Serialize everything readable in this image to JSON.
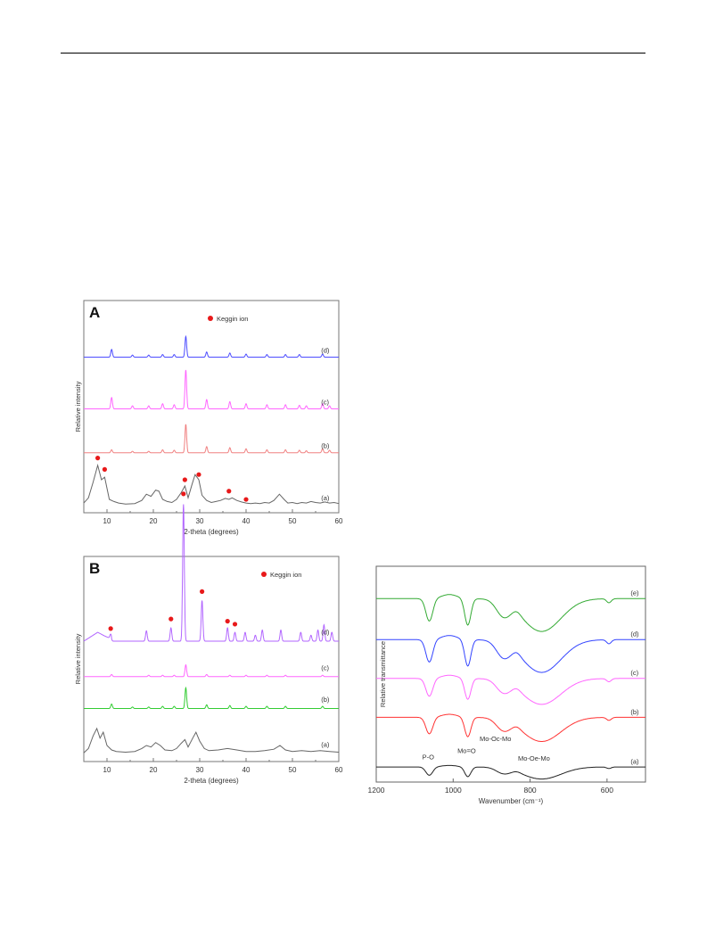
{
  "chart_data": [
    {
      "type": "line",
      "panel_label": "A",
      "legend": "Keggin ion",
      "legend_color": "#e8191a",
      "xlabel": "2-theta (degrees)",
      "ylabel": "Relative intensity",
      "xlim": [
        5,
        60
      ],
      "xticks": [
        10,
        20,
        30,
        40,
        50,
        60
      ],
      "xtick_labels": [
        "10",
        "20",
        "30",
        "40",
        "50",
        "60"
      ],
      "series": [
        {
          "name": "(a)",
          "color": "#666666",
          "offset": 0,
          "points": [
            [
              5,
              0.05
            ],
            [
              6,
              0.15
            ],
            [
              7,
              0.45
            ],
            [
              8,
              0.78
            ],
            [
              8.8,
              0.5
            ],
            [
              9.5,
              0.55
            ],
            [
              10.5,
              0.12
            ],
            [
              11.5,
              0.08
            ],
            [
              12.5,
              0.05
            ],
            [
              14,
              0.03
            ],
            [
              16,
              0.04
            ],
            [
              17.5,
              0.1
            ],
            [
              18.5,
              0.22
            ],
            [
              19.5,
              0.18
            ],
            [
              20.5,
              0.3
            ],
            [
              21.2,
              0.28
            ],
            [
              22,
              0.12
            ],
            [
              23,
              0.08
            ],
            [
              24,
              0.06
            ],
            [
              25,
              0.12
            ],
            [
              26,
              0.25
            ],
            [
              26.8,
              0.38
            ],
            [
              27.5,
              0.15
            ],
            [
              28.3,
              0.4
            ],
            [
              29,
              0.6
            ],
            [
              29.8,
              0.5
            ],
            [
              30.5,
              0.2
            ],
            [
              31.5,
              0.1
            ],
            [
              32.5,
              0.06
            ],
            [
              33.5,
              0.08
            ],
            [
              34.5,
              0.1
            ],
            [
              35.5,
              0.14
            ],
            [
              36.3,
              0.12
            ],
            [
              37,
              0.15
            ],
            [
              38,
              0.1
            ],
            [
              39,
              0.07
            ],
            [
              40,
              0.05
            ],
            [
              41,
              0.04
            ],
            [
              42,
              0.05
            ],
            [
              43,
              0.04
            ],
            [
              44,
              0.06
            ],
            [
              45,
              0.05
            ],
            [
              46,
              0.1
            ],
            [
              47.2,
              0.22
            ],
            [
              48.2,
              0.12
            ],
            [
              49,
              0.05
            ],
            [
              50,
              0.06
            ],
            [
              51,
              0.04
            ],
            [
              52,
              0.06
            ],
            [
              53,
              0.05
            ],
            [
              54,
              0.08
            ],
            [
              55,
              0.06
            ],
            [
              56,
              0.05
            ],
            [
              57,
              0.07
            ],
            [
              58,
              0.05
            ],
            [
              59,
              0.06
            ],
            [
              60,
              0.04
            ]
          ],
          "markers": [
            [
              8,
              0.92
            ],
            [
              9.5,
              0.7
            ],
            [
              26.8,
              0.5
            ],
            [
              29.8,
              0.6
            ],
            [
              36.3,
              0.28
            ],
            [
              40,
              0.12
            ]
          ]
        },
        {
          "name": "(b)",
          "color": "#f08080",
          "offset": 1.0,
          "base": 0.02,
          "peaks": [
            [
              11,
              0.06
            ],
            [
              15.5,
              0.03
            ],
            [
              19,
              0.03
            ],
            [
              22,
              0.06
            ],
            [
              24.5,
              0.05
            ],
            [
              27,
              0.55
            ],
            [
              31.5,
              0.12
            ],
            [
              36.5,
              0.1
            ],
            [
              40,
              0.08
            ],
            [
              44.5,
              0.06
            ],
            [
              48.5,
              0.06
            ],
            [
              51.5,
              0.05
            ],
            [
              53,
              0.04
            ],
            [
              56.5,
              0.08
            ],
            [
              58,
              0.05
            ]
          ]
        },
        {
          "name": "(c)",
          "color": "#ff66ff",
          "offset": 1.85,
          "base": 0.02,
          "peaks": [
            [
              11,
              0.22
            ],
            [
              15.5,
              0.06
            ],
            [
              19,
              0.06
            ],
            [
              22,
              0.1
            ],
            [
              24.5,
              0.08
            ],
            [
              27,
              0.75
            ],
            [
              31.5,
              0.18
            ],
            [
              36.5,
              0.14
            ],
            [
              40,
              0.1
            ],
            [
              44.5,
              0.08
            ],
            [
              48.5,
              0.08
            ],
            [
              51.5,
              0.07
            ],
            [
              53,
              0.06
            ],
            [
              56.5,
              0.1
            ],
            [
              58,
              0.06
            ]
          ]
        },
        {
          "name": "(d)",
          "color": "#4d4dff",
          "offset": 2.85,
          "base": 0.02,
          "peaks": [
            [
              11,
              0.15
            ],
            [
              15.5,
              0.04
            ],
            [
              19,
              0.04
            ],
            [
              22,
              0.05
            ],
            [
              24.5,
              0.05
            ],
            [
              27,
              0.4
            ],
            [
              31.5,
              0.1
            ],
            [
              36.5,
              0.08
            ],
            [
              40,
              0.06
            ],
            [
              44.5,
              0.05
            ],
            [
              48.5,
              0.05
            ],
            [
              51.5,
              0.05
            ],
            [
              56.5,
              0.06
            ]
          ]
        }
      ]
    },
    {
      "type": "line",
      "panel_label": "B",
      "legend": "Keggin ion",
      "legend_color": "#e8191a",
      "xlabel": "2-theta (degrees)",
      "ylabel": "Relative intensity",
      "xlim": [
        5,
        60
      ],
      "xticks": [
        10,
        20,
        30,
        40,
        50,
        60
      ],
      "xtick_labels": [
        "10",
        "20",
        "30",
        "40",
        "50",
        "60"
      ],
      "series": [
        {
          "name": "(a)",
          "color": "#666666",
          "offset": 0,
          "points": [
            [
              5,
              0.02
            ],
            [
              6,
              0.08
            ],
            [
              7,
              0.25
            ],
            [
              7.8,
              0.35
            ],
            [
              8.5,
              0.22
            ],
            [
              9.2,
              0.3
            ],
            [
              10,
              0.12
            ],
            [
              11,
              0.06
            ],
            [
              12,
              0.04
            ],
            [
              14,
              0.03
            ],
            [
              16,
              0.04
            ],
            [
              17.5,
              0.08
            ],
            [
              18.5,
              0.12
            ],
            [
              19.5,
              0.1
            ],
            [
              20.5,
              0.16
            ],
            [
              21.5,
              0.12
            ],
            [
              22.5,
              0.06
            ],
            [
              24,
              0.05
            ],
            [
              25,
              0.08
            ],
            [
              26,
              0.15
            ],
            [
              26.8,
              0.2
            ],
            [
              27.5,
              0.1
            ],
            [
              28.5,
              0.22
            ],
            [
              29.2,
              0.3
            ],
            [
              30,
              0.18
            ],
            [
              31,
              0.08
            ],
            [
              32,
              0.05
            ],
            [
              34,
              0.06
            ],
            [
              36,
              0.08
            ],
            [
              38,
              0.06
            ],
            [
              40,
              0.04
            ],
            [
              42,
              0.04
            ],
            [
              44,
              0.05
            ],
            [
              46,
              0.07
            ],
            [
              47.3,
              0.12
            ],
            [
              48.5,
              0.06
            ],
            [
              50,
              0.04
            ],
            [
              52,
              0.05
            ],
            [
              54,
              0.04
            ],
            [
              56,
              0.05
            ],
            [
              58,
              0.04
            ],
            [
              60,
              0.03
            ]
          ]
        },
        {
          "name": "(b)",
          "color": "#33cc33",
          "offset": 0.62,
          "base": 0.0,
          "peaks": [
            [
              11,
              0.06
            ],
            [
              15.5,
              0.02
            ],
            [
              19,
              0.02
            ],
            [
              22,
              0.03
            ],
            [
              24.5,
              0.03
            ],
            [
              27,
              0.28
            ],
            [
              31.5,
              0.05
            ],
            [
              36.5,
              0.04
            ],
            [
              40,
              0.03
            ],
            [
              44.5,
              0.03
            ],
            [
              48.5,
              0.03
            ],
            [
              56.5,
              0.03
            ]
          ]
        },
        {
          "name": "(c)",
          "color": "#ff66ff",
          "offset": 1.05,
          "base": 0.0,
          "peaks": [
            [
              11,
              0.03
            ],
            [
              19,
              0.02
            ],
            [
              22,
              0.02
            ],
            [
              24.5,
              0.02
            ],
            [
              27,
              0.16
            ],
            [
              31.5,
              0.03
            ],
            [
              36.5,
              0.02
            ],
            [
              40,
              0.02
            ],
            [
              44.5,
              0.02
            ],
            [
              48.5,
              0.02
            ],
            [
              56.5,
              0.02
            ]
          ]
        },
        {
          "name": "(d)",
          "color": "#b266ff",
          "offset": 1.5,
          "base": 0.03,
          "hump": [
            [
              5,
              0.0
            ],
            [
              7,
              0.08
            ],
            [
              8,
              0.12
            ],
            [
              9.5,
              0.07
            ],
            [
              11,
              0.03
            ]
          ],
          "peaks": [
            [
              10.8,
              0.06
            ],
            [
              18.5,
              0.14
            ],
            [
              23.8,
              0.18
            ],
            [
              26.5,
              1.85
            ],
            [
              30.5,
              0.55
            ],
            [
              36,
              0.18
            ],
            [
              37.6,
              0.12
            ],
            [
              39.8,
              0.12
            ],
            [
              42,
              0.08
            ],
            [
              43.5,
              0.15
            ],
            [
              47.5,
              0.15
            ],
            [
              51.8,
              0.12
            ],
            [
              54,
              0.08
            ],
            [
              55.5,
              0.15
            ],
            [
              56.8,
              0.22
            ],
            [
              58.5,
              0.12
            ]
          ],
          "markers": [
            [
              10.8,
              0.2
            ],
            [
              23.8,
              0.33
            ],
            [
              26.5,
              2.02
            ],
            [
              30.5,
              0.7
            ],
            [
              36,
              0.3
            ],
            [
              37.6,
              0.26
            ]
          ]
        }
      ]
    },
    {
      "type": "line",
      "xlabel": "Wavenumber (cm⁻¹)",
      "ylabel": "Relative transmittance",
      "xlim": [
        1200,
        500
      ],
      "xticks": [
        1200,
        1000,
        800,
        600
      ],
      "xtick_labels": [
        "1200",
        "1000",
        "800",
        "600"
      ],
      "band_labels": [
        {
          "text": "P-O",
          "x": 1065,
          "yfrac": 0.895
        },
        {
          "text": "Mo=O",
          "x": 965,
          "yfrac": 0.865
        },
        {
          "text": "Mo-Oc-Mo",
          "x": 890,
          "yfrac": 0.81
        },
        {
          "text": "Mo-Oe-Mo",
          "x": 790,
          "yfrac": 0.9
        }
      ],
      "series": [
        {
          "name": "(a)",
          "color": "#222222",
          "offset": 0.05,
          "scale": 0.35
        },
        {
          "name": "(b)",
          "color": "#ff3333",
          "offset": 0.28,
          "scale": 0.7
        },
        {
          "name": "(c)",
          "color": "#ff66ff",
          "offset": 0.46,
          "scale": 0.75
        },
        {
          "name": "(d)",
          "color": "#3344ff",
          "offset": 0.64,
          "scale": 0.95
        },
        {
          "name": "(e)",
          "color": "#33aa33",
          "offset": 0.83,
          "scale": 0.95
        }
      ]
    }
  ]
}
